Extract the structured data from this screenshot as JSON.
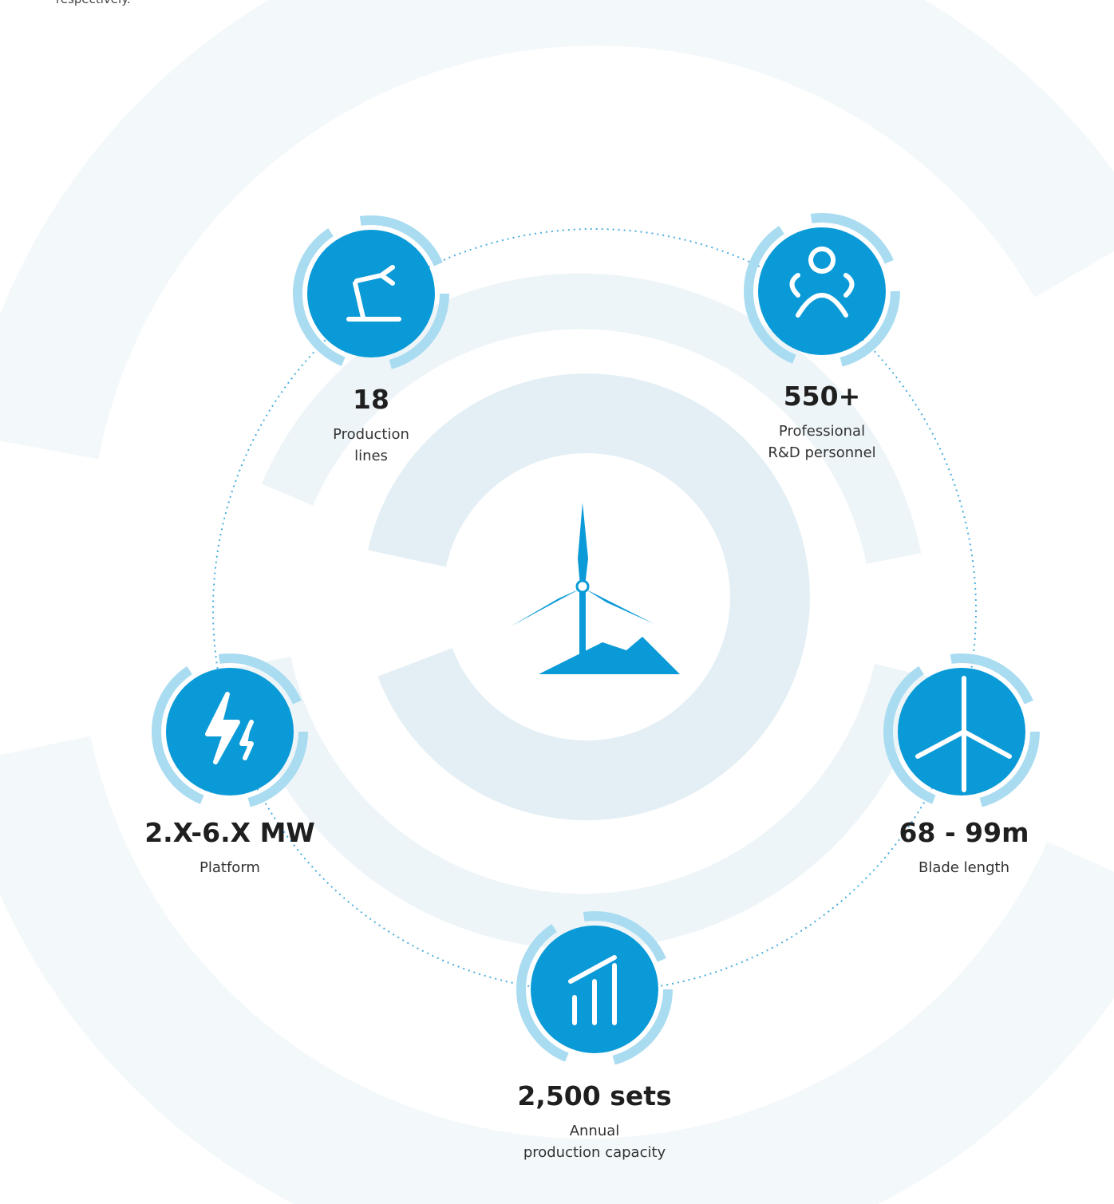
{
  "intro_text": "respectively.",
  "stats": [
    {
      "value": "18",
      "label": [
        "Production",
        "lines"
      ]
    },
    {
      "value": "550+",
      "label": [
        "Professional",
        "R&D personnel"
      ]
    },
    {
      "value": "68 - 99m",
      "label": [
        "Blade length"
      ]
    },
    {
      "value": "2,500 sets",
      "label": [
        "Annual",
        "production capacity"
      ]
    },
    {
      "value": "2.X-6.X MW",
      "label": [
        "Platform"
      ]
    }
  ]
}
